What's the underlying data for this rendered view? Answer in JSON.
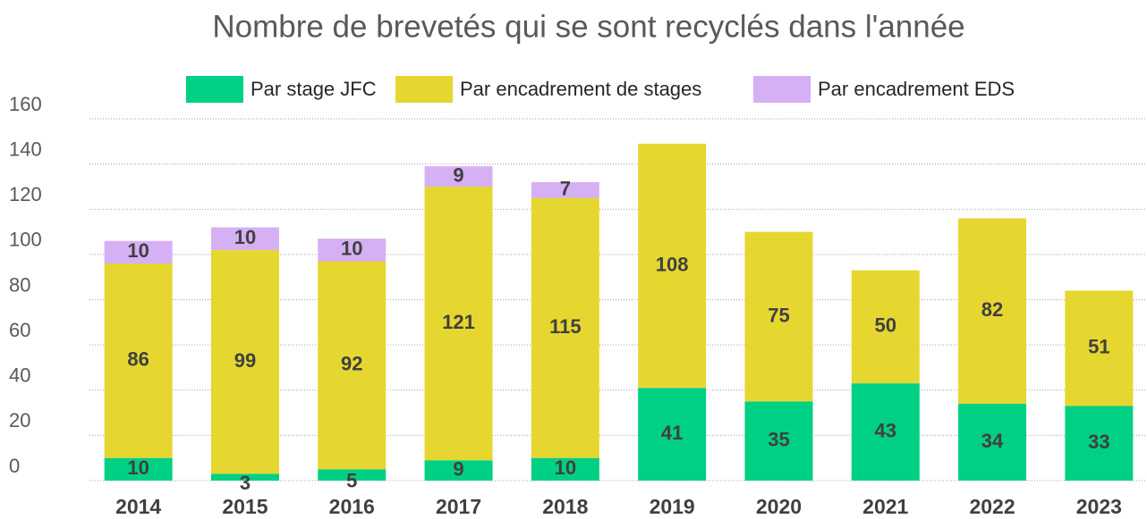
{
  "chart_data": {
    "type": "stacked_bar",
    "title": "Nombre de brevetés qui se sont recyclés dans l'année",
    "categories": [
      "2014",
      "2015",
      "2016",
      "2017",
      "2018",
      "2019",
      "2020",
      "2021",
      "2022",
      "2023"
    ],
    "series": [
      {
        "name": "Par stage JFC",
        "color": "#00d084",
        "values": [
          10,
          3,
          5,
          9,
          10,
          41,
          35,
          43,
          34,
          33
        ]
      },
      {
        "name": "Par encadrement de stages",
        "color": "#e6d630",
        "values": [
          86,
          99,
          92,
          121,
          115,
          108,
          75,
          50,
          82,
          51
        ]
      },
      {
        "name": "Par encadrement EDS",
        "color": "#d5b0f5",
        "values": [
          10,
          10,
          10,
          9,
          7,
          null,
          null,
          null,
          null,
          null
        ]
      }
    ],
    "ylim": [
      0,
      160
    ],
    "yticks": [
      0,
      20,
      40,
      60,
      80,
      100,
      120,
      140,
      160
    ],
    "grid": true,
    "legend": "top"
  }
}
